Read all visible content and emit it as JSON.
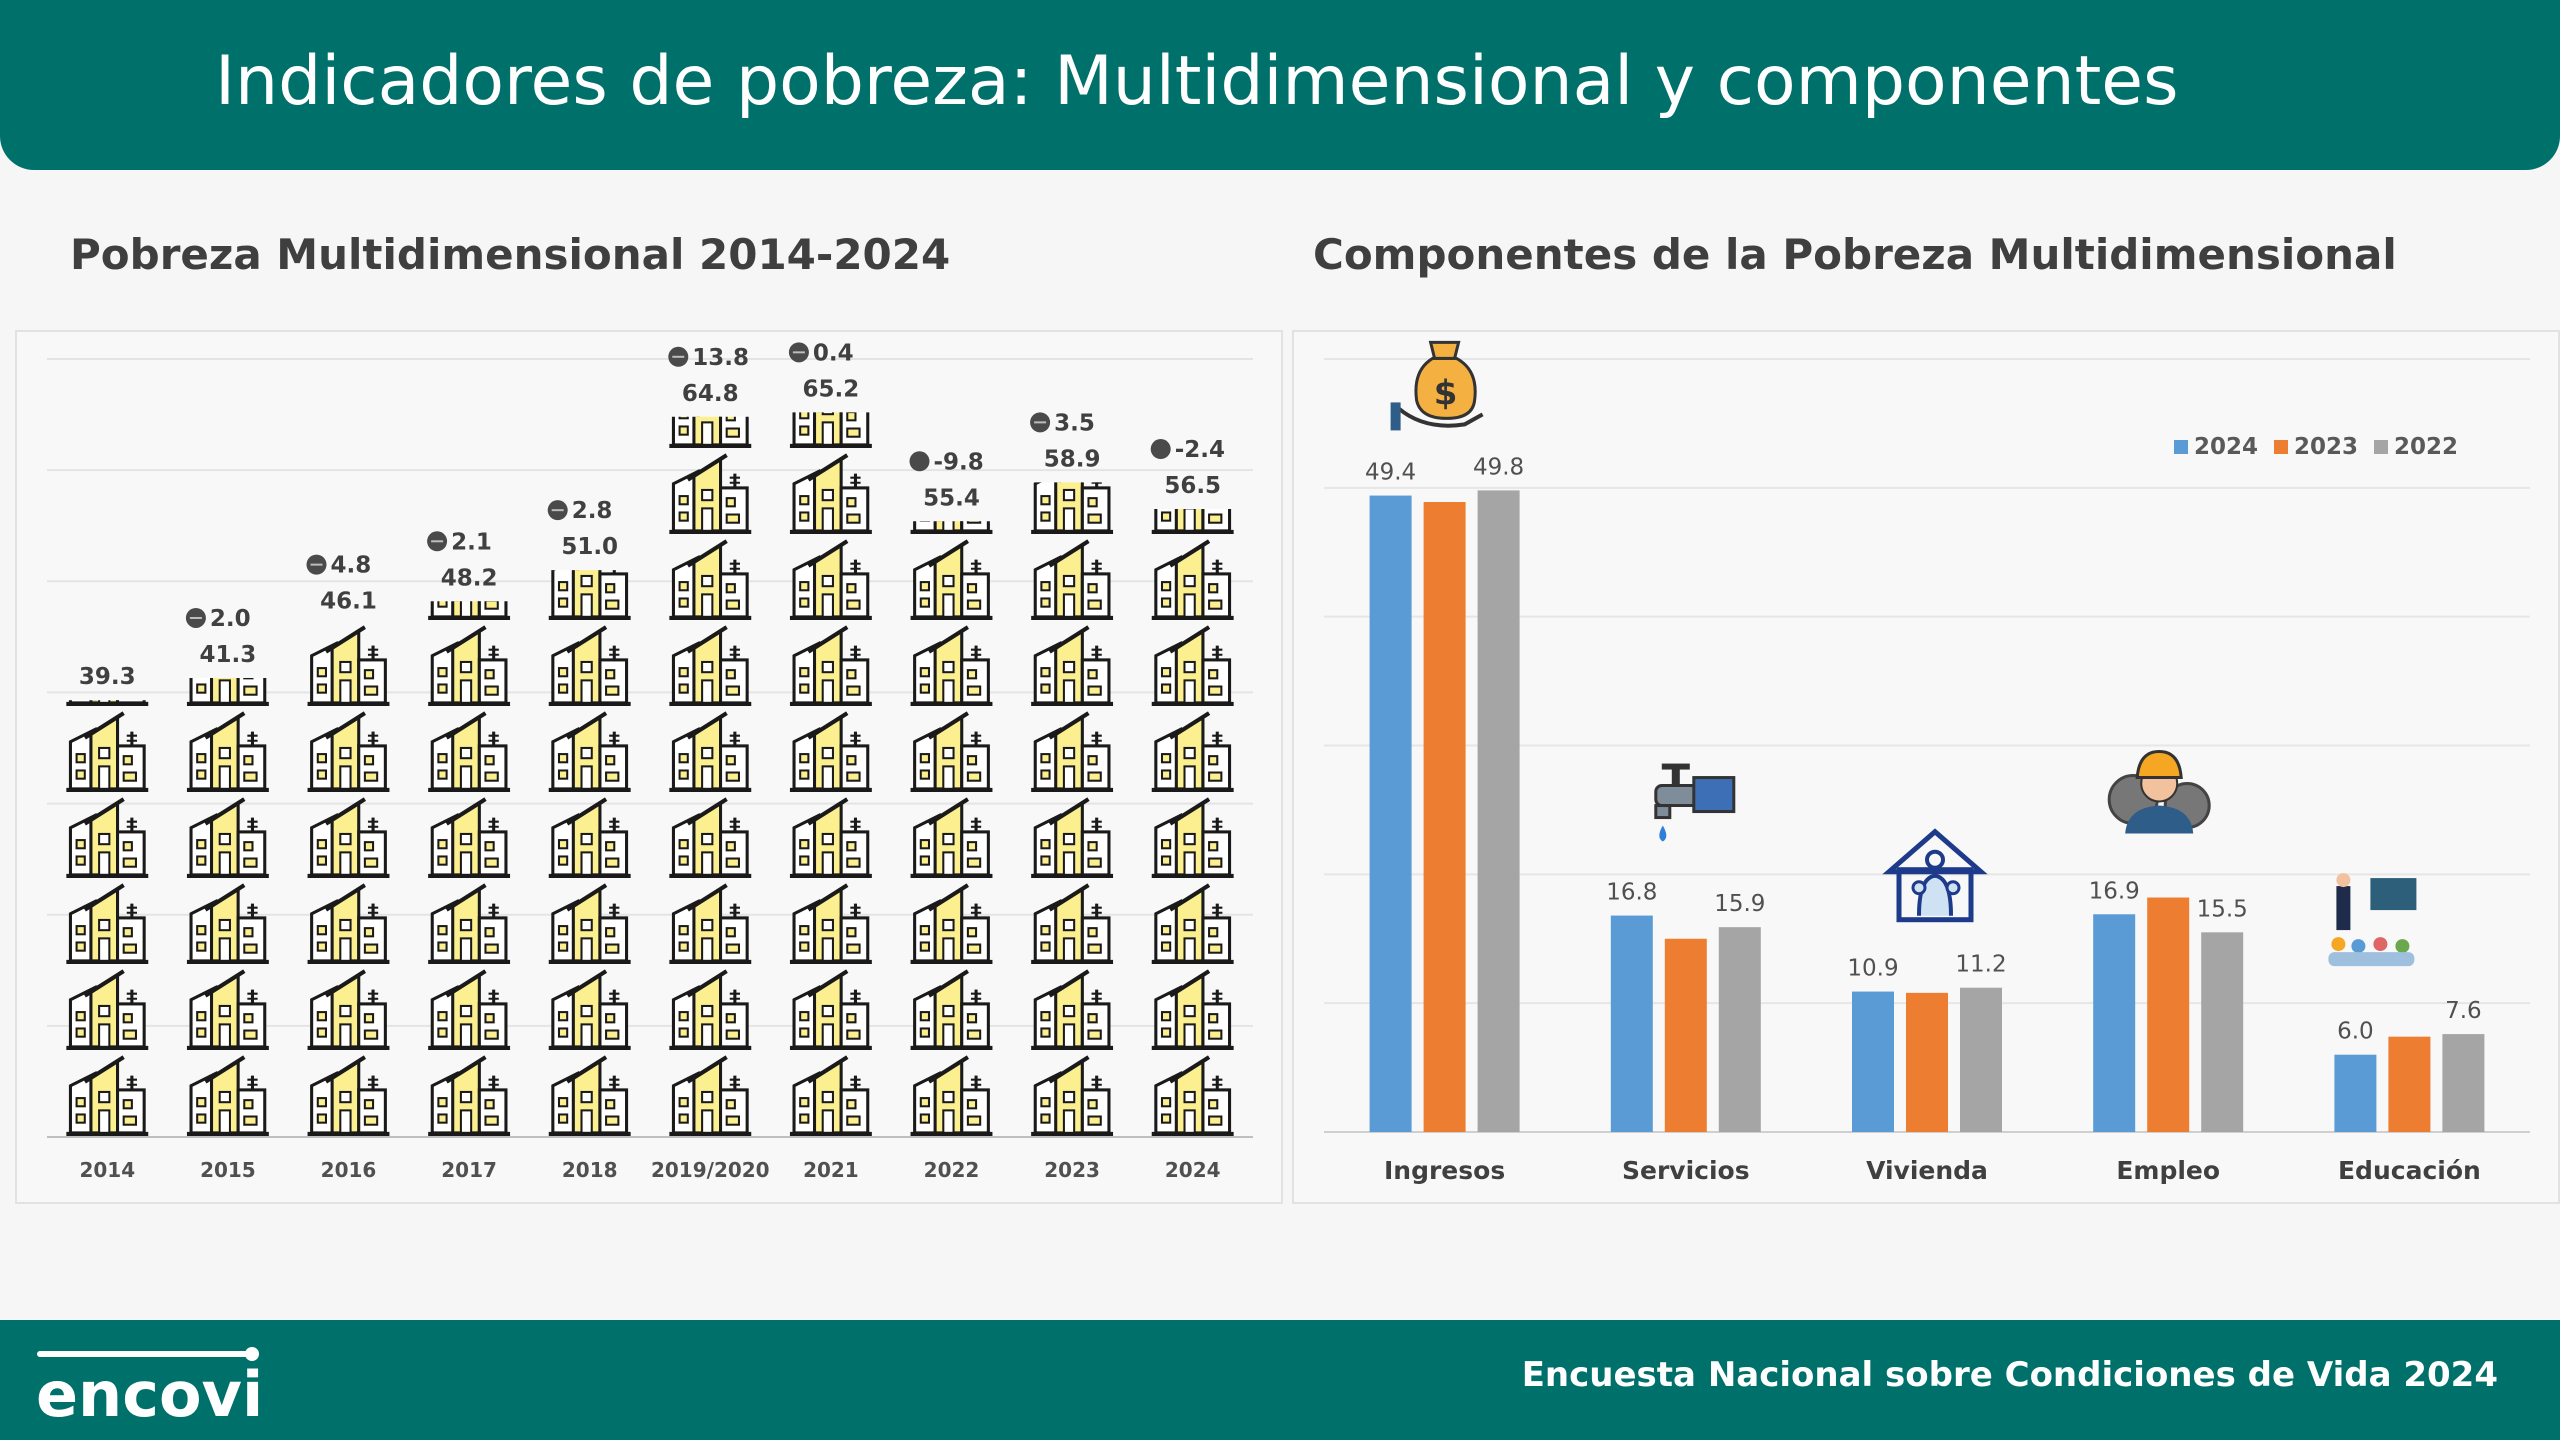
{
  "header": {
    "title": "Indicadores de pobreza: Multidimensional y componentes"
  },
  "left_title": "Pobreza Multidimensional 2014-2024",
  "right_title": "Componentes de la Pobreza Multidimensional",
  "chart_data": [
    {
      "type": "bar",
      "title": "Pobreza Multidimensional 2014-2024",
      "categories": [
        "2014",
        "2015",
        "2016",
        "2017",
        "2018",
        "2019/2020",
        "2021",
        "2022",
        "2023",
        "2024"
      ],
      "values": [
        39.3,
        41.3,
        46.1,
        48.2,
        51.0,
        64.8,
        65.2,
        55.4,
        58.9,
        56.5
      ],
      "changes": [
        null,
        "2.0",
        "4.8",
        "2.1",
        "2.8",
        "13.8",
        "0.4",
        "-9.8",
        "3.5",
        "-2.4"
      ],
      "value_labels": [
        "39.3",
        "41.3",
        "46.1",
        "48.2",
        "51.0",
        "64.8",
        "65.2",
        "55.4",
        "58.9",
        "56.5"
      ],
      "ylim": [
        0,
        70
      ],
      "grid": true,
      "xlabel": "",
      "ylabel": "",
      "bar_style": "pictogram-house-icons",
      "colors": {
        "house_fill": "#fbef8f",
        "house_stroke": "#1a1a1a",
        "change_marker": "#4a4a4a"
      }
    },
    {
      "type": "bar",
      "title": "Componentes de la Pobreza Multidimensional",
      "categories": [
        "Ingresos",
        "Servicios",
        "Vivienda",
        "Empleo",
        "Educación"
      ],
      "category_icons": [
        "money-bag-icon",
        "water-tap-icon",
        "house-family-icon",
        "worker-icon",
        "teacher-icon"
      ],
      "series": [
        {
          "name": "2024",
          "color": "#5b9bd5",
          "values": [
            49.4,
            16.8,
            10.9,
            16.9,
            6.0
          ]
        },
        {
          "name": "2023",
          "color": "#ed7d31",
          "values": [
            48.9,
            15.0,
            10.8,
            18.2,
            7.4
          ]
        },
        {
          "name": "2022",
          "color": "#a5a5a5",
          "values": [
            49.8,
            15.9,
            11.2,
            15.5,
            7.6
          ]
        }
      ],
      "data_labels": [
        [
          "49.4",
          "16.8",
          "10.9",
          "16.9",
          "6.0"
        ],
        [
          "",
          "",
          "",
          "",
          ""
        ],
        [
          "49.8",
          "15.9",
          "11.2",
          "15.5",
          "7.6"
        ]
      ],
      "ylim": [
        0,
        60
      ],
      "grid": true,
      "legend": "top-right"
    }
  ],
  "footer": {
    "logo_text": "encovi",
    "text": "Encuesta Nacional sobre Condiciones de Vida 2024"
  }
}
